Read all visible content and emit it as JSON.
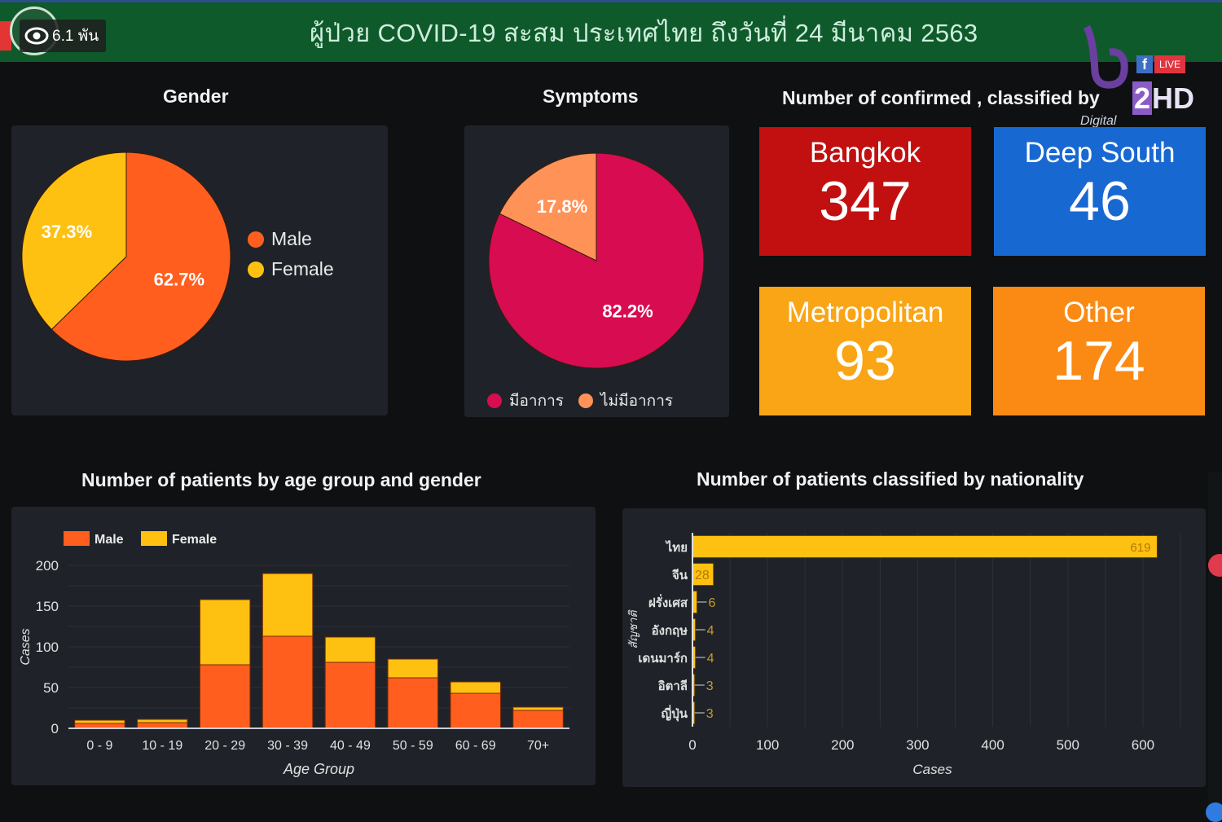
{
  "header": {
    "title": "ผู้ป่วย COVID-19 สะสม  ประเทศไทย ถึงวันที่ 24 มีนาคม 2563",
    "viewers": "6.1 พัน",
    "viewers_icon": "eye-icon",
    "brand": {
      "fb": "f",
      "live": "LIVE",
      "channel_number": "2",
      "channel_suffix": "HD",
      "digital": "Digital"
    }
  },
  "sections": {
    "gender_title": "Gender",
    "symptoms_title": "Symptoms",
    "regions_title": "Number of confirmed , classified by",
    "age_title": "Number of patients by age group and gender",
    "nationality_title": "Number of patients  classified by nationality"
  },
  "regions": [
    {
      "label": "Bangkok",
      "value": "347",
      "color": "#c20f0f"
    },
    {
      "label": "Deep South",
      "value": "46",
      "color": "#1868d2"
    },
    {
      "label": "Metropolitan",
      "value": "93",
      "color": "#f9a516"
    },
    {
      "label": "Other",
      "value": "174",
      "color": "#fa8a14"
    }
  ],
  "colors": {
    "male": "#ff5e1f",
    "female": "#ffc111",
    "symptomatic": "#d80c51",
    "asymptomatic": "#ff9257",
    "nationality_bar": "#ffc111",
    "panel": "#1f2329",
    "header_green": "#0f5a2b"
  },
  "chart_data": [
    {
      "type": "pie",
      "title": "Gender",
      "labels": [
        "Male",
        "Female"
      ],
      "values": [
        62.7,
        37.3
      ],
      "data_labels": [
        "62.7%",
        "37.3%"
      ],
      "legend": "right"
    },
    {
      "type": "pie",
      "title": "Symptoms",
      "labels": [
        "มีอาการ",
        "ไม่มีอาการ"
      ],
      "values": [
        82.2,
        17.8
      ],
      "data_labels": [
        "82.2%",
        "17.8%"
      ],
      "legend": "bottom"
    },
    {
      "type": "bar",
      "stacked": true,
      "title": "Number of patients by age group and gender",
      "categories": [
        "0 - 9",
        "10 - 19",
        "20 - 29",
        "30 - 39",
        "40 - 49",
        "50 - 59",
        "60 - 69",
        "70+"
      ],
      "series": [
        {
          "name": "Male",
          "values": [
            6,
            7,
            78,
            113,
            81,
            62,
            43,
            22
          ]
        },
        {
          "name": "Female",
          "values": [
            4,
            4,
            80,
            77,
            31,
            23,
            14,
            4
          ]
        }
      ],
      "xlabel": "Age Group",
      "ylabel": "Cases",
      "ylim": [
        0,
        200
      ],
      "yticks": [
        "0",
        "50",
        "100",
        "150",
        "200"
      ],
      "grid": true,
      "legend": "top-left"
    },
    {
      "type": "bar",
      "orientation": "horizontal",
      "title": "Number of patients  classified by nationality",
      "categories": [
        "ไทย",
        "จีน",
        "ฝรั่งเศส",
        "อังกฤษ",
        "เดนมาร์ก",
        "อิตาลี",
        "ญี่ปุ่น"
      ],
      "values": [
        619,
        28,
        6,
        4,
        4,
        3,
        3
      ],
      "data_labels": [
        "619",
        "28",
        "6",
        "4",
        "4",
        "3",
        "3"
      ],
      "xlabel": "Cases",
      "ylabel": "สัญชาติ",
      "xlim": [
        0,
        650
      ],
      "xticks": [
        "0",
        "100",
        "200",
        "300",
        "400",
        "500",
        "600"
      ],
      "grid": true
    }
  ]
}
